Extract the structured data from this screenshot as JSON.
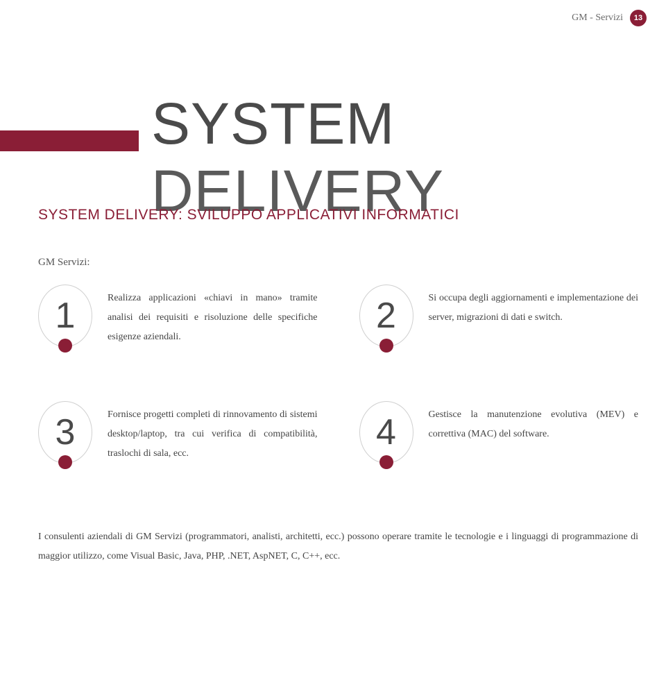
{
  "header": {
    "label": "GM - Servizi",
    "page_number": "13"
  },
  "colors": {
    "accent": "#8a1e36",
    "text_primary": "#4a4a4a",
    "text_body": "#444444",
    "text_muted": "#6a6a6a",
    "border": "#d0d0d0",
    "background": "#ffffff"
  },
  "title": {
    "part1": "SYSTEM",
    "part2": "DELIVERY"
  },
  "subtitle": "SYSTEM DELIVERY: SVILUPPO APPLICATIVI INFORMATICI",
  "intro": "GM Servizi:",
  "items": [
    {
      "number": "1",
      "text": "Realizza applicazioni «chiavi in mano» tramite analisi dei requisiti e risoluzione delle specifiche esigenze aziendali."
    },
    {
      "number": "2",
      "text": "Si occupa degli aggiornamenti e implementazione dei server, migrazioni di dati e switch."
    },
    {
      "number": "3",
      "text": "Fornisce progetti completi di rinnovamento di sistemi desktop/laptop, tra cui verifica di compatibilità, traslochi di sala, ecc."
    },
    {
      "number": "4",
      "text": "Gestisce la manutenzione evolutiva (MEV) e correttiva (MAC) del software."
    }
  ],
  "footer": "I consulenti aziendali di GM Servizi (programmatori, analisti, architetti, ecc.) possono operare tramite le tecnologie e i linguaggi di programmazione di maggior utilizzo, come Visual Basic, Java, PHP, .NET, AspNET, C, C++, ecc."
}
